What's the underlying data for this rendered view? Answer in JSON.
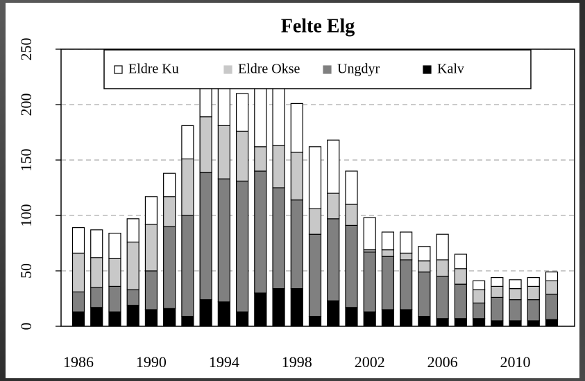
{
  "chart_data": {
    "type": "stacked_bar",
    "title": "Felte Elg",
    "categories": [
      "1986",
      null,
      null,
      null,
      "1990",
      null,
      null,
      null,
      "1994",
      null,
      null,
      null,
      "1998",
      null,
      null,
      null,
      "2002",
      null,
      null,
      null,
      "2006",
      null,
      null,
      null,
      "2010",
      null,
      null
    ],
    "series": [
      {
        "name": "Eldre Ku",
        "color": "#ffffff",
        "values": [
          23,
          25,
          23,
          21,
          25,
          21,
          30,
          41,
          44,
          34,
          65,
          57,
          44,
          56,
          48,
          30,
          29,
          16,
          19,
          13,
          23,
          13,
          8,
          8,
          8,
          8,
          8
        ]
      },
      {
        "name": "Eldre Okse",
        "color": "#c8c8c8",
        "values": [
          35,
          27,
          25,
          43,
          42,
          27,
          51,
          50,
          48,
          45,
          22,
          38,
          43,
          23,
          23,
          19,
          2,
          6,
          6,
          10,
          15,
          14,
          12,
          10,
          10,
          12,
          12
        ]
      },
      {
        "name": "Ungdyr",
        "color": "#808080",
        "values": [
          18,
          18,
          23,
          14,
          35,
          74,
          91,
          115,
          111,
          118,
          110,
          91,
          80,
          74,
          74,
          74,
          54,
          48,
          45,
          40,
          38,
          31,
          14,
          21,
          19,
          19,
          23
        ]
      },
      {
        "name": "Kalv",
        "color": "#000000",
        "values": [
          13,
          17,
          13,
          19,
          15,
          16,
          9,
          24,
          22,
          13,
          30,
          34,
          34,
          9,
          23,
          17,
          13,
          15,
          15,
          9,
          7,
          7,
          7,
          5,
          5,
          5,
          6
        ]
      }
    ],
    "ylim": [
      0,
      250
    ],
    "yticks": [
      0,
      50,
      100,
      150,
      200,
      250
    ],
    "grid": true,
    "legend": "top"
  }
}
